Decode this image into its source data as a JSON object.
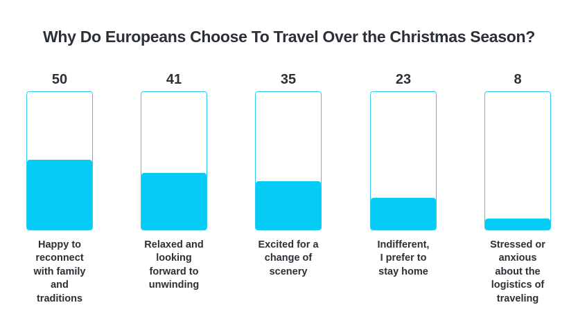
{
  "chart_data": {
    "type": "bar",
    "title": "Why Do Europeans Choose To Travel Over the Christmas Season?",
    "xlabel": "",
    "ylabel": "",
    "ylim": [
      0,
      100
    ],
    "categories": [
      "Happy to reconnect with family and traditions",
      "Relaxed and looking forward to unwinding",
      "Excited for a change of scenery",
      "Indifferent, I prefer to stay home",
      "Stressed or anxious about the logistics of traveling"
    ],
    "values": [
      50,
      41,
      35,
      23,
      8
    ],
    "colors": {
      "fill": "#04ccf4",
      "outline": "#29cdf3",
      "text": "#2b2f36"
    }
  },
  "labels": [
    [
      "Happy to",
      "reconnect",
      "with family",
      "and",
      "traditions"
    ],
    [
      "Relaxed and",
      "looking",
      "forward to",
      "unwinding"
    ],
    [
      "Excited for a",
      "change of",
      "scenery"
    ],
    [
      "Indifferent,",
      "I prefer to",
      "stay home"
    ],
    [
      "Stressed or",
      "anxious",
      "about the",
      "logistics of",
      "traveling"
    ]
  ]
}
